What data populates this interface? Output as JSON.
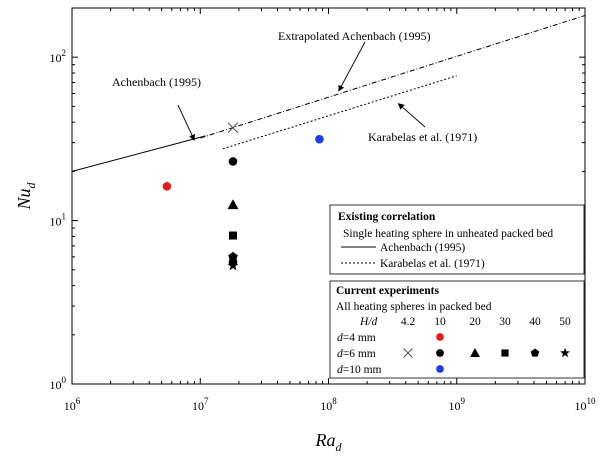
{
  "chart_data": {
    "type": "scatter",
    "xlabel": {
      "main": "Ra",
      "sub": "d"
    },
    "ylabel": {
      "main": "Nu",
      "sub": "d"
    },
    "xscale": "log",
    "yscale": "log",
    "xlim": [
      1000000.0,
      10000000000.0
    ],
    "ylim": [
      1,
      200
    ],
    "grid": false,
    "x_ticks": [
      {
        "value": 1000000.0,
        "base": "10",
        "exp": "6"
      },
      {
        "value": 10000000.0,
        "base": "10",
        "exp": "7"
      },
      {
        "value": 100000000.0,
        "base": "10",
        "exp": "8"
      },
      {
        "value": 1000000000.0,
        "base": "10",
        "exp": "9"
      },
      {
        "value": 10000000000.0,
        "base": "10",
        "exp": "10"
      }
    ],
    "y_ticks": [
      {
        "value": 1,
        "base": "10",
        "exp": "0"
      },
      {
        "value": 10,
        "base": "10",
        "exp": "1"
      },
      {
        "value": 100,
        "base": "10",
        "exp": "2"
      }
    ],
    "lines": [
      {
        "name": "Achenbach (1995)",
        "style": "solid",
        "points": [
          [
            1000000.0,
            20
          ],
          [
            11000000.0,
            33
          ]
        ]
      },
      {
        "name": "Extrapolated Achenbach (1995)",
        "style": "dashdot",
        "points": [
          [
            10000000.0,
            32
          ],
          [
            10000000000.0,
            180
          ]
        ]
      },
      {
        "name": "Karabelas et al. (1971)",
        "style": "dotted",
        "points": [
          [
            15000000.0,
            27.5
          ],
          [
            1000000000.0,
            77
          ]
        ]
      }
    ],
    "points": [
      {
        "x": 5500000.0,
        "y": 16.2,
        "marker": "circle",
        "color": "#e0201f"
      },
      {
        "x": 18000000.0,
        "y": 37,
        "marker": "x",
        "color": "#555555"
      },
      {
        "x": 18000000.0,
        "y": 23,
        "marker": "circle",
        "color": "#000000"
      },
      {
        "x": 18000000.0,
        "y": 12.5,
        "marker": "triangle",
        "color": "#000000"
      },
      {
        "x": 18000000.0,
        "y": 8.1,
        "marker": "square",
        "color": "#000000"
      },
      {
        "x": 18000000.0,
        "y": 6.0,
        "marker": "pentagon",
        "color": "#000000"
      },
      {
        "x": 18000000.0,
        "y": 5.6,
        "marker": "circle",
        "color": "#000000"
      },
      {
        "x": 18000000.0,
        "y": 5.3,
        "marker": "star",
        "color": "#000000"
      },
      {
        "x": 85000000.0,
        "y": 31.5,
        "marker": "circle",
        "color": "#1f3fe0"
      }
    ],
    "annotations": [
      {
        "text": "Extrapolated Achenbach (1995)",
        "arrow_to": [
          120000000.0,
          62
        ]
      },
      {
        "text": "Achenbach (1995)",
        "arrow_to": [
          9000000.0,
          31
        ]
      },
      {
        "text": "Karabelas et al. (1971)",
        "arrow_to": [
          350000000.0,
          52
        ]
      }
    ],
    "legend": {
      "placement": "bottom-right",
      "existing": {
        "title": "Existing correlation",
        "subtitle": "Single heating sphere in unheated packed bed",
        "entries": [
          {
            "label": "Achenbach (1995)",
            "style": "solid"
          },
          {
            "label": "Karabelas et al. (1971)",
            "style": "dotted"
          }
        ]
      },
      "experiments": {
        "title": "Current experiments",
        "subtitle": "All heating spheres in packed bed",
        "hd_label": "H/d",
        "hd_values": [
          "4.2",
          "10",
          "20",
          "30",
          "40",
          "50"
        ],
        "rows": [
          {
            "label": "d=4 mm",
            "markers": [
              null,
              "circle:#e0201f",
              null,
              null,
              null,
              null
            ]
          },
          {
            "label": "d=6 mm",
            "markers": [
              "x:#555555",
              "circle:#000000",
              "triangle:#000000",
              "square:#000000",
              "pentagon:#000000",
              "star:#000000"
            ]
          },
          {
            "label": "d=10 mm",
            "markers": [
              null,
              "circle:#1f3fe0",
              null,
              null,
              null,
              null
            ]
          }
        ]
      }
    }
  }
}
